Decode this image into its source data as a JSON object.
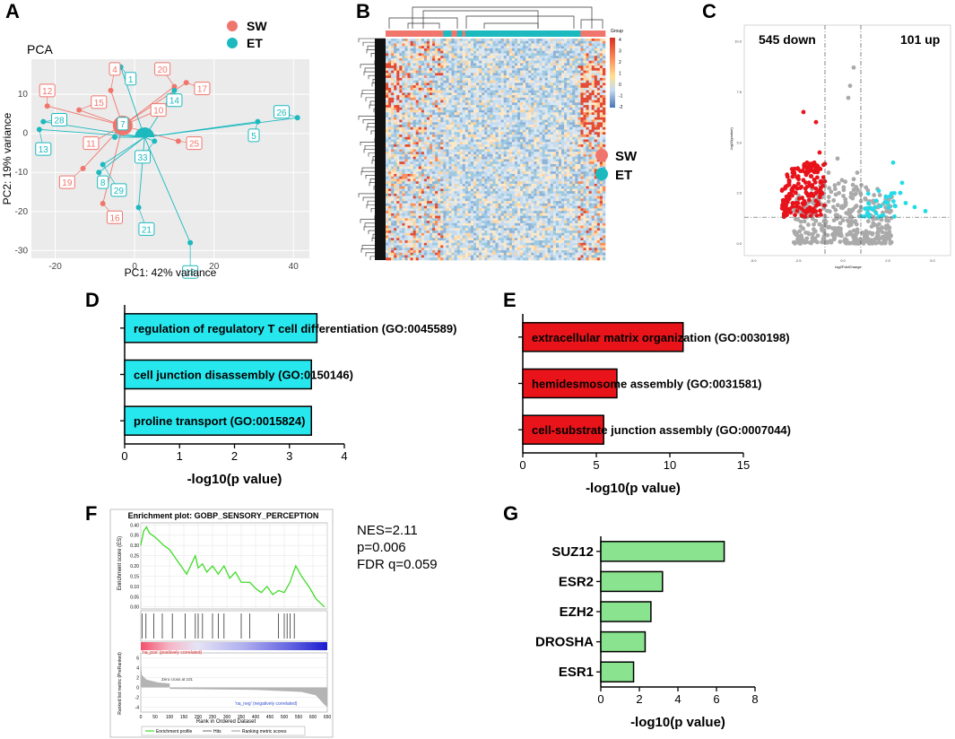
{
  "figure": {
    "panel_letters": [
      "A",
      "B",
      "C",
      "D",
      "E",
      "F",
      "G"
    ]
  },
  "colors": {
    "sw": "#f0766d",
    "et": "#1cb9bf",
    "cyan_bar": "#27e7ee",
    "red_bar": "#e8141a",
    "green_bar": "#8ae38e",
    "volcano_down": "#e8121a",
    "volcano_up": "#23dbe8",
    "volcano_ns": "#aaaaaa",
    "gsea_curve": "#3fdc27"
  },
  "pca": {
    "title": "PCA",
    "xlabel": "PC1: 42% variance",
    "ylabel": "PC2: 19% variance",
    "xticks": [
      -20,
      0,
      20,
      40
    ],
    "yticks": [
      -30,
      -20,
      -10,
      0,
      10
    ],
    "legend": [
      {
        "name": "SW",
        "color_key": "sw"
      },
      {
        "name": "ET",
        "color_key": "et"
      }
    ],
    "centroids": {
      "SW": [
        -3,
        2
      ],
      "ET": [
        2.5,
        -1
      ]
    },
    "samples": [
      {
        "id": "4",
        "group": "SW",
        "x": -6,
        "y": 11,
        "label": [
          -5,
          16.5
        ]
      },
      {
        "id": "20",
        "group": "SW",
        "x": 10,
        "y": 12,
        "label": [
          7,
          16.5
        ]
      },
      {
        "id": "17",
        "group": "SW",
        "x": 13,
        "y": 13,
        "label": [
          17,
          11.5
        ]
      },
      {
        "id": "12",
        "group": "SW",
        "x": -22,
        "y": 7,
        "label": [
          -22,
          11
        ]
      },
      {
        "id": "15",
        "group": "SW",
        "x": -14,
        "y": 6,
        "label": [
          -9,
          8
        ]
      },
      {
        "id": "10",
        "group": "SW",
        "x": 6,
        "y": 6,
        "label": [
          6,
          6
        ]
      },
      {
        "id": "11",
        "group": "SW",
        "x": -12,
        "y": -3,
        "label": [
          -11,
          -2.5
        ]
      },
      {
        "id": "25",
        "group": "SW",
        "x": 11,
        "y": -2,
        "label": [
          15,
          -2.5
        ]
      },
      {
        "id": "19",
        "group": "SW",
        "x": -13,
        "y": -9,
        "label": [
          -17,
          -12.5
        ]
      },
      {
        "id": "16",
        "group": "SW",
        "x": -8,
        "y": -18,
        "label": [
          -5,
          -21.5
        ]
      },
      {
        "id": "1",
        "group": "ET",
        "x": -3.5,
        "y": 17,
        "label": [
          -1,
          14
        ]
      },
      {
        "id": "14",
        "group": "ET",
        "x": 10,
        "y": 11,
        "label": [
          10,
          8.5
        ]
      },
      {
        "id": "28",
        "group": "ET",
        "x": -23,
        "y": 3,
        "label": [
          -19,
          3.5
        ]
      },
      {
        "id": "26",
        "group": "ET",
        "x": 41,
        "y": 4,
        "label": [
          37,
          5.5
        ]
      },
      {
        "id": "5",
        "group": "ET",
        "x": 31,
        "y": 3,
        "label": [
          30,
          -0.5
        ]
      },
      {
        "id": "13",
        "group": "ET",
        "x": -24,
        "y": 1,
        "label": [
          -23,
          -4
        ]
      },
      {
        "id": "7",
        "group": "ET",
        "x": -5,
        "y": -1,
        "label": [
          -3,
          2.5
        ]
      },
      {
        "id": "33",
        "group": "ET",
        "x": 5,
        "y": -2,
        "label": [
          2,
          -6
        ]
      },
      {
        "id": "8",
        "group": "ET",
        "x": -9,
        "y": -10,
        "label": [
          -8,
          -12.5
        ]
      },
      {
        "id": "29",
        "group": "ET",
        "x": -8,
        "y": -8,
        "label": [
          -4,
          -14.5
        ]
      },
      {
        "id": "21",
        "group": "ET",
        "x": 1,
        "y": -19,
        "label": [
          3,
          -24.5
        ]
      },
      {
        "id": "18",
        "group": "ET",
        "x": 14,
        "y": -28,
        "label": [
          14,
          -35.5
        ]
      }
    ]
  },
  "heatmap": {
    "legend_title": "Group",
    "scale_ticks": [
      "4",
      "3",
      "2",
      "1",
      "0",
      "-1",
      "-2"
    ],
    "legend": [
      {
        "name": "SW",
        "color_key": "sw"
      },
      {
        "name": "ET",
        "color_key": "et"
      }
    ],
    "column_groups": [
      "SW",
      "SW",
      "SW",
      "SW",
      "SW",
      "SW",
      "SW",
      "SW",
      "SW",
      "SW",
      "SW",
      "SW",
      "SW",
      "SW",
      "SW",
      "SW",
      "SW",
      "SW",
      "SW",
      "SW",
      "SW",
      "ET",
      "ET",
      "ET",
      "SW",
      "SW",
      "ET",
      "ET",
      "SW",
      "ET",
      "ET",
      "ET",
      "ET",
      "ET",
      "ET",
      "ET",
      "ET",
      "ET",
      "ET",
      "ET",
      "ET",
      "ET",
      "ET",
      "ET",
      "ET",
      "ET",
      "ET",
      "ET",
      "ET",
      "ET",
      "ET",
      "ET",
      "ET",
      "ET",
      "ET",
      "ET",
      "ET",
      "ET",
      "ET",
      "ET",
      "ET",
      "ET",
      "ET",
      "ET",
      "ET",
      "ET",
      "ET",
      "ET",
      "ET",
      "ET",
      "ET",
      "SW",
      "SW",
      "SW",
      "SW",
      "SW",
      "SW",
      "SW",
      "SW",
      "SW"
    ]
  },
  "volcano": {
    "down_label": "545 down",
    "up_label": "101 up",
    "xlabel": "log2FoldChange",
    "ylabel": "-log10(pvalue)",
    "xticks": [
      "-5.0",
      "-2.5",
      "0.0",
      "2.5",
      "5.0"
    ],
    "yticks": [
      "0.0",
      "2.5",
      "5.0",
      "7.5",
      "10.0"
    ],
    "fc_threshold": 1,
    "p_threshold_neglog10": 1.3,
    "down_points": [
      [
        -2.2,
        6.5
      ],
      [
        -1.5,
        6.0
      ],
      [
        -1.3,
        4.5
      ],
      [
        -2.8,
        3.5
      ],
      [
        -2.0,
        4.0
      ],
      [
        -1.8,
        3.8
      ],
      [
        -3.2,
        2.8
      ],
      [
        -2.5,
        2.0
      ],
      [
        -1.5,
        2.5
      ],
      [
        -2.0,
        2.8
      ],
      [
        -3.0,
        3.0
      ]
    ],
    "up_points": [
      [
        2.8,
        4.0
      ],
      [
        3.3,
        3.0
      ],
      [
        3.2,
        2.5
      ],
      [
        3.5,
        2.0
      ],
      [
        2.5,
        2.0
      ],
      [
        4.0,
        1.8
      ],
      [
        4.6,
        1.6
      ],
      [
        1.8,
        1.8
      ],
      [
        2.0,
        2.6
      ]
    ],
    "ns_points": [
      [
        0.3,
        7.2
      ],
      [
        0.4,
        7.8
      ],
      [
        0.6,
        8.7
      ],
      [
        -0.8,
        3.5
      ],
      [
        -0.3,
        4.2
      ],
      [
        0.8,
        3.5
      ]
    ]
  },
  "go_ontology": [
    {
      "type": "bar",
      "orientation": "horizontal",
      "xlabel": "-log10(p value)",
      "xticks": [
        0,
        1,
        2,
        3,
        4
      ],
      "xlim": [
        0,
        4
      ],
      "color_key": "cyan_bar",
      "categories": [
        "regulation of regulatory T cell differentiation (GO:0045589)",
        "cell junction disassembly (GO:0150146)",
        "proline transport (GO:0015824)"
      ],
      "values": [
        3.5,
        3.4,
        3.4
      ]
    },
    {
      "type": "bar",
      "orientation": "horizontal",
      "xlabel": "-log10(p value)",
      "xticks": [
        0,
        5,
        10,
        15
      ],
      "xlim": [
        0,
        15
      ],
      "color_key": "red_bar",
      "categories": [
        "extracellular matrix organization (GO:0030198)",
        "hemidesmosome assembly (GO:0031581)",
        "cell-substrate junction assembly (GO:0007044)"
      ],
      "values": [
        10.9,
        6.4,
        5.5
      ]
    }
  ],
  "gsea": {
    "title": "Enrichment plot: GOBP_SENSORY_PERCEPTION",
    "es_label": "Enrichment score (ES)",
    "es_ticks": [
      "0.40",
      "0.35",
      "0.30",
      "0.25",
      "0.20",
      "0.15",
      "0.10",
      "0.05",
      "0.00"
    ],
    "rank_ticks": [
      "6",
      "4",
      "2",
      "0",
      "-2",
      "-4"
    ],
    "rank_label": "Ranked list metric (PreRanked)",
    "x_ticks": [
      "0",
      "50",
      "100",
      "150",
      "200",
      "250",
      "300",
      "350",
      "400",
      "450",
      "500",
      "550",
      "600",
      "650"
    ],
    "xlabel": "Rank in Ordered Dataset",
    "pos_label": "'na_pos' (positively correlated)",
    "neg_label": "'na_neg' (negatively correlated)",
    "zero_cross": "Zero cross at 101",
    "legend": [
      "Enrichment profile",
      "Hits",
      "Ranking metric scores"
    ],
    "stats": {
      "nes": "NES=2.11",
      "p": "p=0.006",
      "fdr": "FDR q=0.059"
    },
    "es_curve": [
      [
        0,
        0.3
      ],
      [
        10,
        0.37
      ],
      [
        20,
        0.39
      ],
      [
        30,
        0.36
      ],
      [
        50,
        0.34
      ],
      [
        80,
        0.3
      ],
      [
        100,
        0.28
      ],
      [
        120,
        0.24
      ],
      [
        140,
        0.2
      ],
      [
        160,
        0.16
      ],
      [
        190,
        0.25
      ],
      [
        200,
        0.19
      ],
      [
        215,
        0.21
      ],
      [
        230,
        0.17
      ],
      [
        250,
        0.2
      ],
      [
        270,
        0.16
      ],
      [
        290,
        0.2
      ],
      [
        310,
        0.14
      ],
      [
        330,
        0.17
      ],
      [
        350,
        0.12
      ],
      [
        380,
        0.12
      ],
      [
        400,
        0.09
      ],
      [
        420,
        0.07
      ],
      [
        440,
        0.1
      ],
      [
        460,
        0.06
      ],
      [
        480,
        0.08
      ],
      [
        500,
        0.07
      ],
      [
        520,
        0.12
      ],
      [
        540,
        0.2
      ],
      [
        560,
        0.15
      ],
      [
        590,
        0.09
      ],
      [
        610,
        0.04
      ],
      [
        640,
        0.0
      ]
    ],
    "hits": [
      5,
      18,
      45,
      75,
      110,
      155,
      190,
      200,
      215,
      250,
      270,
      290,
      350,
      380,
      480,
      500,
      510,
      520,
      535
    ]
  },
  "target_genes": {
    "type": "bar",
    "orientation": "horizontal",
    "xlabel": "-log10(p value)",
    "xticks": [
      0,
      2,
      4,
      6,
      8
    ],
    "xlim": [
      0,
      8
    ],
    "color_key": "green_bar",
    "categories": [
      "SUZ12",
      "ESR2",
      "EZH2",
      "DROSHA",
      "ESR1"
    ],
    "values": [
      6.4,
      3.2,
      2.6,
      2.3,
      1.7
    ]
  }
}
